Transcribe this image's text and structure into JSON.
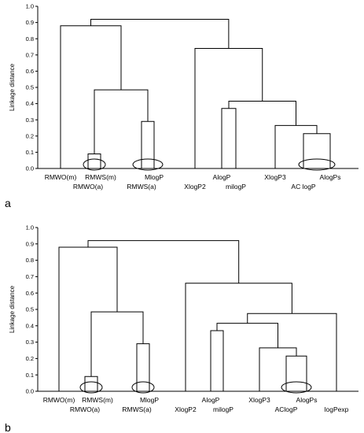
{
  "chart_data": [
    {
      "type": "dendrogram",
      "panel_label": "a",
      "ylabel": "Linkage distance",
      "ylim": [
        0,
        1.0
      ],
      "yticks": [
        0.0,
        0.1,
        0.2,
        0.3,
        0.4,
        0.5,
        0.6,
        0.7,
        0.8,
        0.9,
        1.0
      ],
      "leaves": [
        {
          "label": "RMWO(m)",
          "row": 1
        },
        {
          "label": "RMWO(a)",
          "row": 2
        },
        {
          "label": "RMWS(m)",
          "row": 1
        },
        {
          "label": "RMWS(a)",
          "row": 2
        },
        {
          "label": "MlogP",
          "row": 1
        },
        {
          "label": "XlogP2",
          "row": 2
        },
        {
          "label": "AlogP",
          "row": 1
        },
        {
          "label": "milogP",
          "row": 2
        },
        {
          "label": "XlogP3",
          "row": 1
        },
        {
          "label": "AC logP",
          "row": 2
        },
        {
          "label": "AlogPs",
          "row": 1
        }
      ],
      "merges": [
        {
          "a": 1,
          "b": 2,
          "height": 0.09
        },
        {
          "a": 3,
          "b": 4,
          "height": 0.29
        },
        {
          "a": 9,
          "b": 10,
          "height": 0.215
        },
        {
          "a": 8,
          "b": 13,
          "height": 0.265
        },
        {
          "a": 6,
          "b": 7,
          "height": 0.37
        },
        {
          "a": 15,
          "b": 14,
          "height": 0.415
        },
        {
          "a": 11,
          "b": 12,
          "height": 0.485
        },
        {
          "a": 5,
          "b": 16,
          "height": 0.74
        },
        {
          "a": 0,
          "b": 17,
          "height": 0.88
        },
        {
          "a": 19,
          "b": 18,
          "height": 0.92
        }
      ],
      "ellipses": [
        [
          1,
          2
        ],
        [
          3,
          4
        ],
        [
          9,
          10
        ]
      ]
    },
    {
      "type": "dendrogram",
      "panel_label": "b",
      "ylabel": "Linkage distance",
      "ylim": [
        0,
        1.0
      ],
      "yticks": [
        0.0,
        0.1,
        0.2,
        0.3,
        0.4,
        0.5,
        0.6,
        0.7,
        0.8,
        0.9,
        1.0
      ],
      "leaves": [
        {
          "label": "RMWO(m)",
          "row": 1
        },
        {
          "label": "RMWO(a)",
          "row": 2
        },
        {
          "label": "RMWS(m)",
          "row": 1
        },
        {
          "label": "RMWS(a)",
          "row": 2
        },
        {
          "label": "MlogP",
          "row": 1
        },
        {
          "label": "XlogP2",
          "row": 2
        },
        {
          "label": "AlogP",
          "row": 1
        },
        {
          "label": "milogP",
          "row": 2
        },
        {
          "label": "XlogP3",
          "row": 1
        },
        {
          "label": "AClogP",
          "row": 2
        },
        {
          "label": "AlogPs",
          "row": 1
        },
        {
          "label": "logPexp",
          "row": 2
        }
      ],
      "merges": [
        {
          "a": 1,
          "b": 2,
          "height": 0.09
        },
        {
          "a": 3,
          "b": 4,
          "height": 0.29
        },
        {
          "a": 9,
          "b": 10,
          "height": 0.215
        },
        {
          "a": 8,
          "b": 14,
          "height": 0.265
        },
        {
          "a": 6,
          "b": 7,
          "height": 0.37
        },
        {
          "a": 16,
          "b": 15,
          "height": 0.415
        },
        {
          "a": 17,
          "b": 11,
          "height": 0.475
        },
        {
          "a": 12,
          "b": 13,
          "height": 0.485
        },
        {
          "a": 5,
          "b": 18,
          "height": 0.66
        },
        {
          "a": 0,
          "b": 19,
          "height": 0.88
        },
        {
          "a": 21,
          "b": 20,
          "height": 0.92
        }
      ],
      "ellipses": [
        [
          1,
          2
        ],
        [
          3,
          4
        ],
        [
          9,
          10
        ]
      ]
    }
  ]
}
